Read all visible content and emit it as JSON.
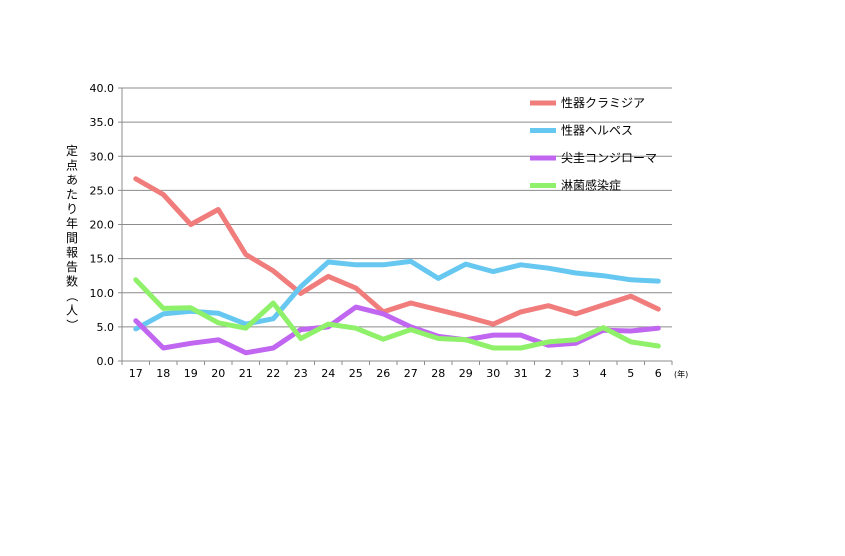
{
  "chart_data": {
    "type": "line",
    "title": "",
    "ylabel": "定点あたり年間報告数（人）",
    "x_unit": "(年)",
    "ylim": [
      0,
      40
    ],
    "yticks": [
      "0.0",
      "5.0",
      "10.0",
      "15.0",
      "20.0",
      "25.0",
      "30.0",
      "35.0",
      "40.0"
    ],
    "categories": [
      "17",
      "18",
      "19",
      "20",
      "21",
      "22",
      "23",
      "24",
      "25",
      "26",
      "27",
      "28",
      "29",
      "30",
      "31",
      "2",
      "3",
      "4",
      "5",
      "6"
    ],
    "grid": true,
    "legend_position": "top-right",
    "series": [
      {
        "name": "性器クラミジア",
        "color": "#f07c7c",
        "values": [
          26.7,
          24.4,
          20.0,
          22.2,
          15.6,
          13.2,
          9.9,
          12.4,
          10.7,
          7.2,
          8.5,
          7.5,
          6.5,
          5.4,
          7.2,
          8.1,
          6.9,
          8.2,
          9.5,
          7.6
        ]
      },
      {
        "name": "性器ヘルペス",
        "color": "#66c8f0",
        "values": [
          4.7,
          6.9,
          7.3,
          7.0,
          5.4,
          6.2,
          10.9,
          14.5,
          14.1,
          14.1,
          14.6,
          12.1,
          14.2,
          13.1,
          14.1,
          13.6,
          12.9,
          12.5,
          11.9,
          11.7
        ]
      },
      {
        "name": "尖圭コンジローマ",
        "color": "#c066f0",
        "values": [
          5.9,
          1.9,
          2.6,
          3.1,
          1.2,
          1.9,
          4.6,
          5.0,
          7.9,
          6.9,
          5.0,
          3.6,
          3.1,
          3.8,
          3.8,
          2.3,
          2.6,
          4.5,
          4.4,
          4.8
        ]
      },
      {
        "name": "淋菌感染症",
        "color": "#8ff06a",
        "values": [
          11.9,
          7.7,
          7.8,
          5.6,
          4.8,
          8.5,
          3.3,
          5.4,
          4.8,
          3.2,
          4.6,
          3.3,
          3.1,
          1.9,
          1.9,
          2.8,
          3.1,
          4.9,
          2.8,
          2.2
        ]
      }
    ]
  }
}
